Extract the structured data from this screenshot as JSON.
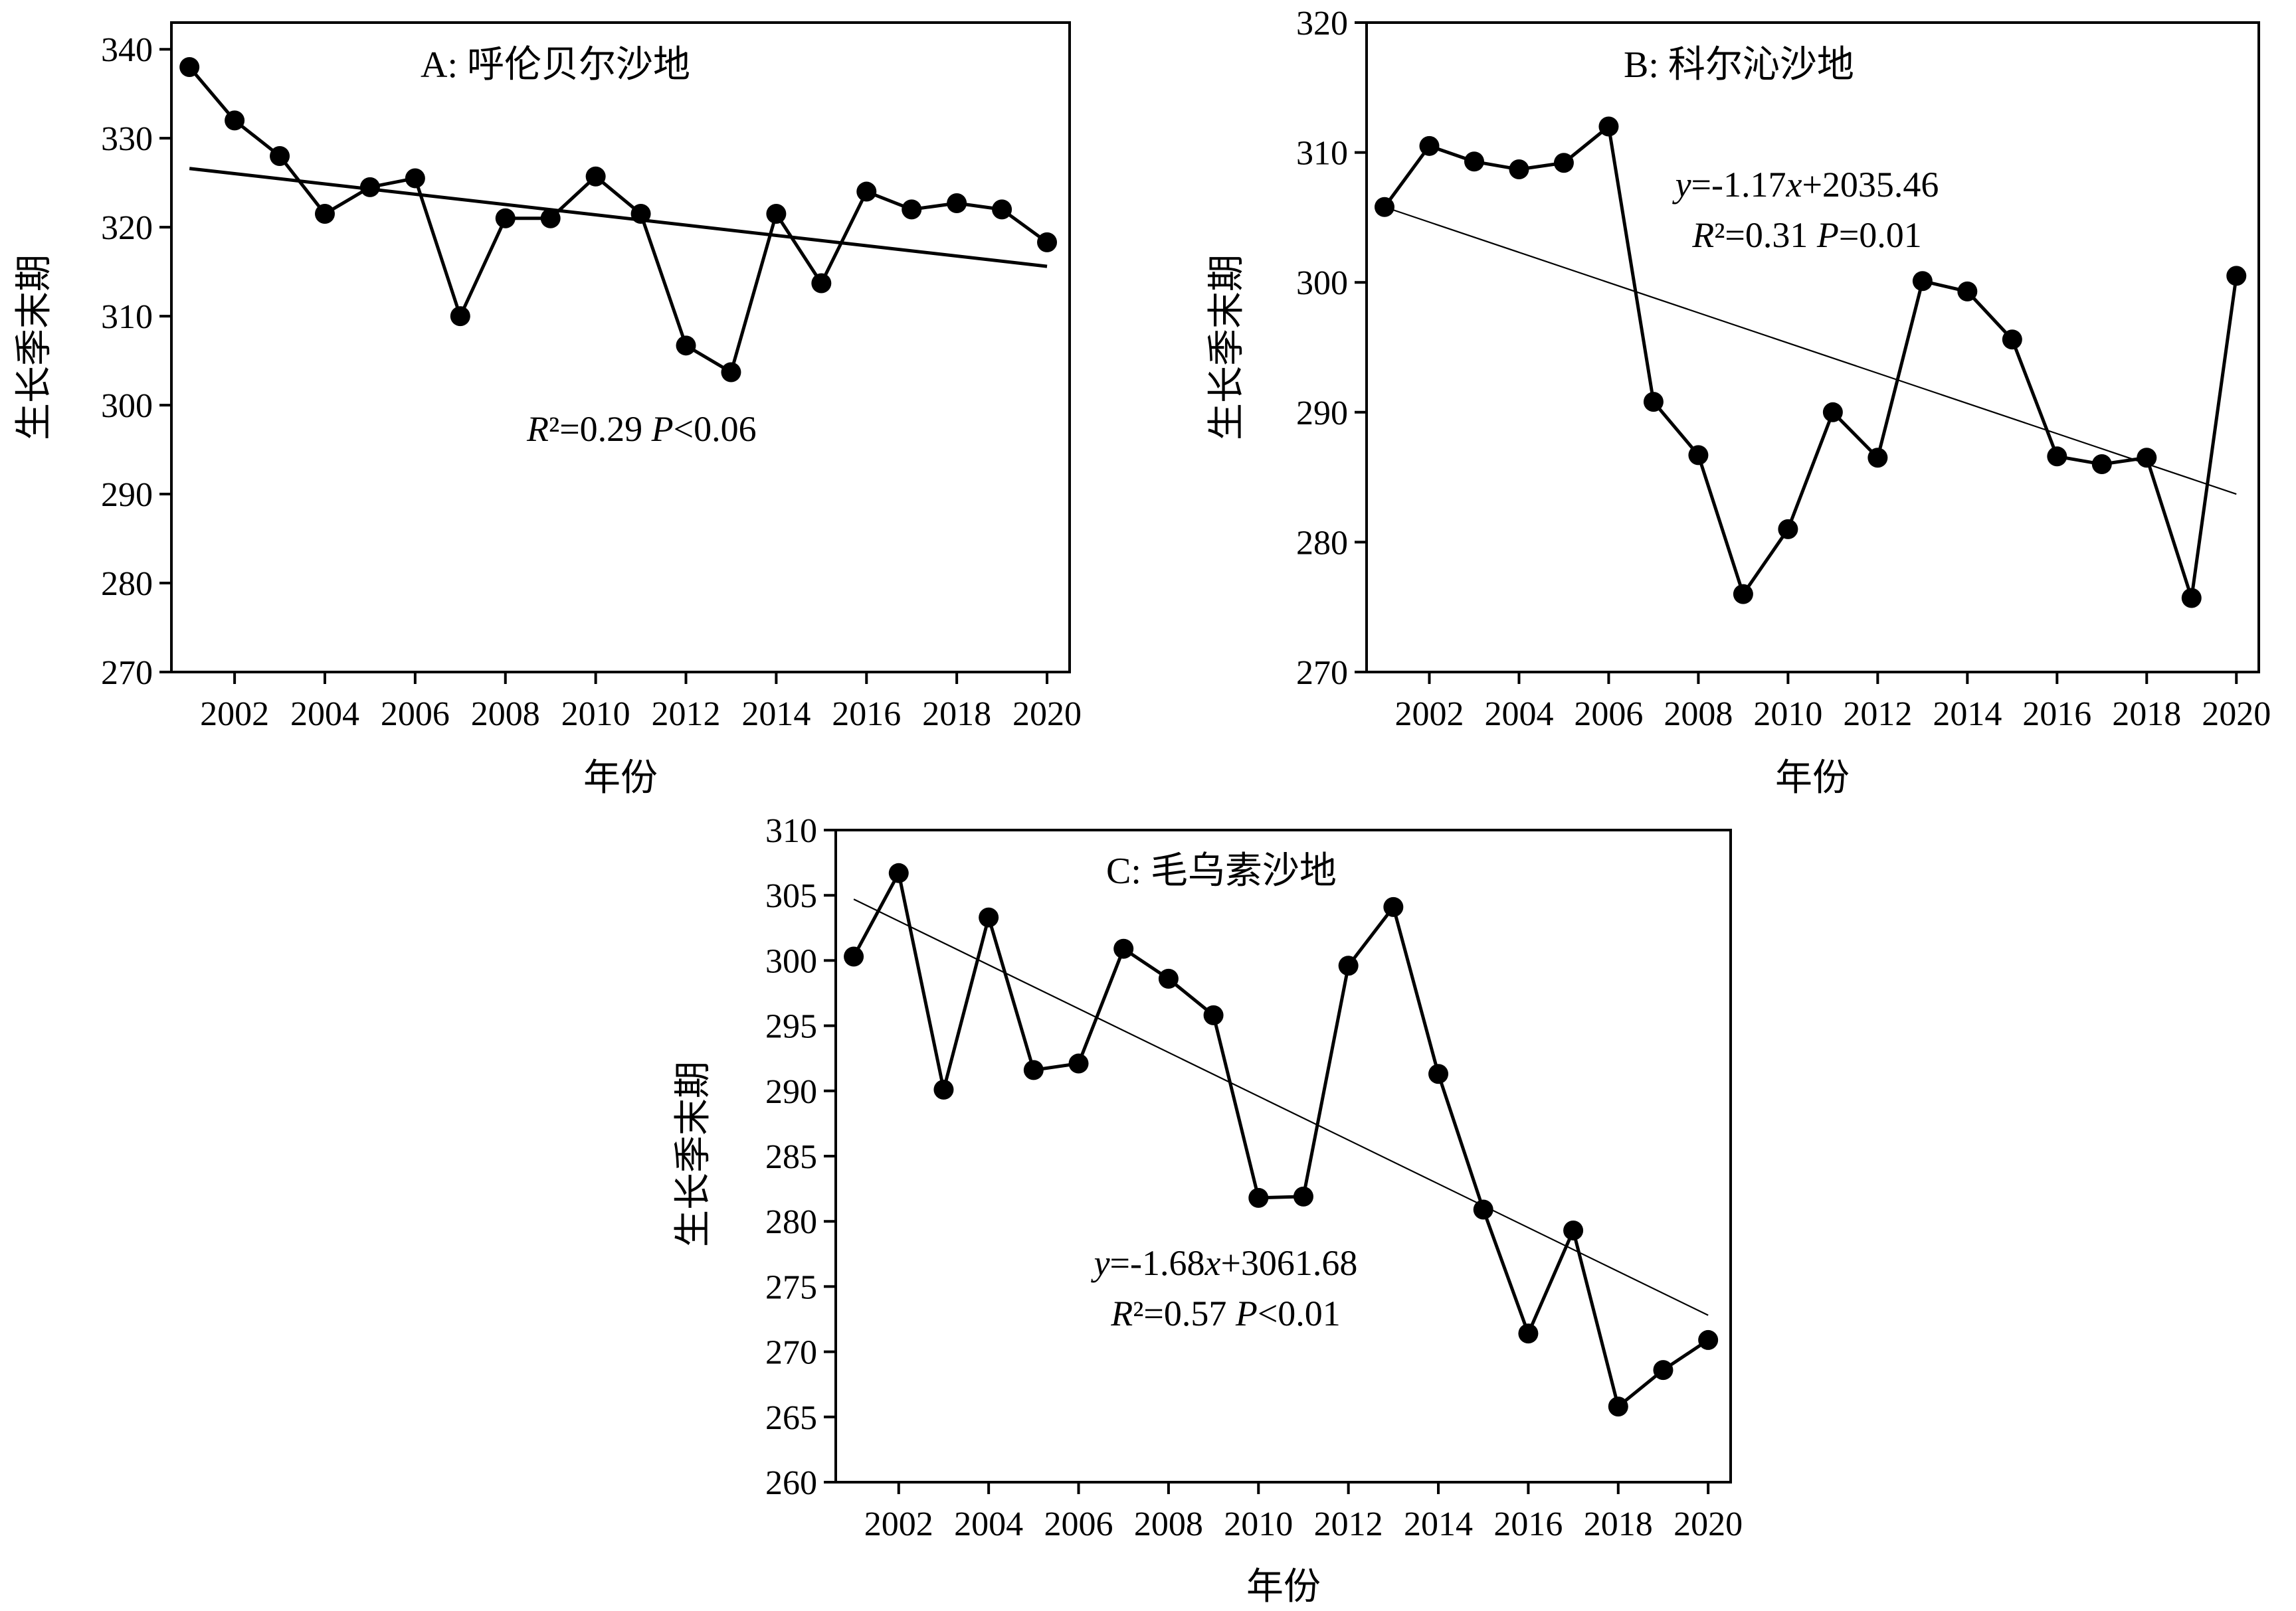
{
  "chart_data": [
    {
      "id": "A",
      "type": "line",
      "title": "A: 呼伦贝尔沙地",
      "xlabel": "年份",
      "ylabel": "生长季末期",
      "x": [
        2001,
        2002,
        2003,
        2004,
        2005,
        2006,
        2007,
        2008,
        2009,
        2010,
        2011,
        2012,
        2013,
        2014,
        2015,
        2016,
        2017,
        2018,
        2019,
        2020
      ],
      "values": [
        338,
        332,
        328,
        321.5,
        324.5,
        325.5,
        310,
        321,
        321,
        325.7,
        321.5,
        306.7,
        303.7,
        321.5,
        313.7,
        324,
        322,
        322.7,
        322,
        318.3
      ],
      "xticks": [
        2002,
        2004,
        2006,
        2008,
        2010,
        2012,
        2014,
        2016,
        2018,
        2020
      ],
      "yticks": [
        270,
        280,
        290,
        300,
        310,
        320,
        330,
        340
      ],
      "ylim": [
        270,
        343
      ],
      "xlim": [
        2000.6,
        2020.5
      ],
      "trend": {
        "x": [
          2001,
          2020
        ],
        "y": [
          326.6,
          315.6
        ],
        "style": "thick"
      },
      "equation": {
        "segments": [
          [
            {
              "t": "R",
              "i": true
            },
            {
              "t": "²=0.29    "
            },
            {
              "t": "P",
              "i": true
            },
            {
              "t": "<0.06"
            }
          ]
        ]
      }
    },
    {
      "id": "B",
      "type": "line",
      "title": "B: 科尔沁沙地",
      "xlabel": "年份",
      "ylabel": "生长季末期",
      "x": [
        2001,
        2002,
        2003,
        2004,
        2005,
        2006,
        2007,
        2008,
        2009,
        2010,
        2011,
        2012,
        2013,
        2014,
        2015,
        2016,
        2017,
        2018,
        2019,
        2020
      ],
      "values": [
        305.8,
        310.5,
        309.3,
        308.7,
        309.2,
        312,
        290.8,
        286.7,
        276,
        281,
        290,
        286.5,
        300.1,
        299.3,
        295.6,
        286.6,
        286,
        286.5,
        275.7,
        300.5
      ],
      "xticks": [
        2002,
        2004,
        2006,
        2008,
        2010,
        2012,
        2014,
        2016,
        2018,
        2020
      ],
      "yticks": [
        270,
        280,
        290,
        300,
        310,
        320
      ],
      "ylim": [
        270,
        320
      ],
      "xlim": [
        2000.6,
        2020.5
      ],
      "trend": {
        "x": [
          2001,
          2020
        ],
        "y": [
          305.8,
          283.7
        ],
        "style": "thin"
      },
      "equation": {
        "segments": [
          [
            {
              "t": "y",
              "i": true
            },
            {
              "t": "=-1.17"
            },
            {
              "t": "x",
              "i": true
            },
            {
              "t": "+2035.46"
            }
          ],
          [
            {
              "t": "R",
              "i": true
            },
            {
              "t": "²=0.31   "
            },
            {
              "t": "P",
              "i": true
            },
            {
              "t": "=0.01"
            }
          ]
        ]
      }
    },
    {
      "id": "C",
      "type": "line",
      "title": "C: 毛乌素沙地",
      "xlabel": "年份",
      "ylabel": "生长季末期",
      "x": [
        2001,
        2002,
        2003,
        2004,
        2005,
        2006,
        2007,
        2008,
        2009,
        2010,
        2011,
        2012,
        2013,
        2014,
        2015,
        2016,
        2017,
        2018,
        2019,
        2020
      ],
      "values": [
        300.3,
        306.7,
        290.1,
        303.3,
        291.6,
        292.1,
        300.9,
        298.6,
        295.8,
        281.8,
        281.9,
        299.6,
        304.1,
        291.3,
        280.9,
        271.4,
        279.3,
        265.8,
        268.6,
        270.9
      ],
      "xticks": [
        2002,
        2004,
        2006,
        2008,
        2010,
        2012,
        2014,
        2016,
        2018,
        2020
      ],
      "yticks": [
        260,
        265,
        270,
        275,
        280,
        285,
        290,
        295,
        300,
        305,
        310
      ],
      "ylim": [
        260,
        310
      ],
      "xlim": [
        2000.6,
        2020.5
      ],
      "trend": {
        "x": [
          2001,
          2020
        ],
        "y": [
          304.7,
          272.8
        ],
        "style": "thin"
      },
      "equation": {
        "segments": [
          [
            {
              "t": "y",
              "i": true
            },
            {
              "t": "=-1.68"
            },
            {
              "t": "x",
              "i": true
            },
            {
              "t": "+3061.68"
            }
          ],
          [
            {
              "t": "R",
              "i": true
            },
            {
              "t": "²=0.57    "
            },
            {
              "t": "P",
              "i": true
            },
            {
              "t": "<0.01"
            }
          ]
        ]
      }
    }
  ]
}
